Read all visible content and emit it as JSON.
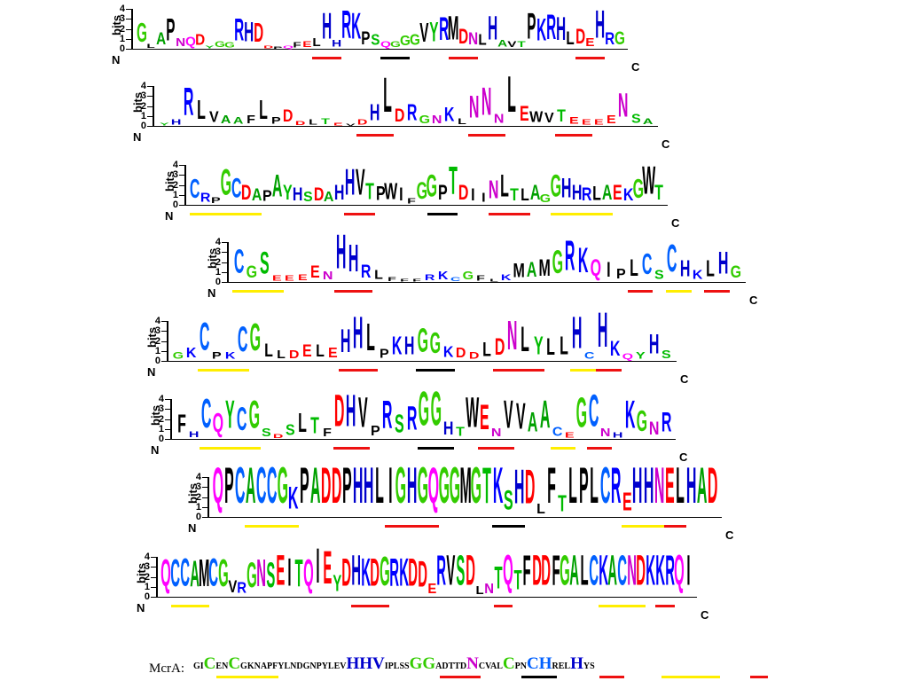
{
  "axis": {
    "title": "bits",
    "ticks": [
      "4",
      "3",
      "2",
      "1",
      "0"
    ],
    "n_label": "N",
    "c_label": "C"
  },
  "colors": {
    "A": "#00a000",
    "C": "#0060ff",
    "D": "#ff0000",
    "E": "#ff0000",
    "F": "#000000",
    "G": "#33cc00",
    "H": "#0000cc",
    "I": "#000000",
    "K": "#0000ff",
    "L": "#000000",
    "M": "#000000",
    "N": "#cc00cc",
    "P": "#000000",
    "Q": "#ff00ff",
    "R": "#0000ff",
    "S": "#00bb00",
    "T": "#00bb00",
    "V": "#000000",
    "W": "#000000",
    "Y": "#00bb00",
    "red_mark": "#ee1111",
    "black_mark": "#000000",
    "yellow_mark": "#ffee00"
  },
  "logos": [
    {
      "id": "logo1",
      "letters": "GLAPNQDYGGRHDDPQFELHHRKPSQGGGVYRMDNLHAVTPKRHLDEHRG",
      "heights": [
        1.9,
        0.4,
        1.2,
        2.2,
        0.8,
        0.9,
        1.1,
        0.3,
        0.6,
        0.5,
        2.2,
        2.0,
        1.9,
        0.3,
        0.2,
        0.3,
        0.5,
        0.6,
        0.8,
        2.6,
        0.7,
        2.8,
        2.6,
        1.3,
        1.1,
        0.6,
        0.6,
        1.0,
        1.1,
        1.9,
        2.0,
        2.3,
        2.4,
        1.5,
        1.2,
        1.1,
        2.4,
        0.7,
        0.6,
        0.6,
        2.6,
        2.2,
        2.5,
        2.3,
        1.3,
        1.5,
        0.8,
        2.8,
        1.2,
        1.3
      ],
      "marks": [
        [
          "red",
          18,
          21
        ],
        [
          "black",
          25,
          28
        ],
        [
          "red",
          32,
          35
        ],
        [
          "red",
          45,
          48
        ]
      ]
    },
    {
      "id": "logo2",
      "letters": "YHRLVAAFLPDDLTEVDHLDRGNKLNNNLEWVTEEEENSA",
      "heights": [
        0.3,
        0.5,
        2.8,
        1.9,
        1.1,
        0.8,
        0.7,
        0.8,
        1.9,
        0.7,
        1.2,
        0.4,
        0.5,
        0.6,
        0.3,
        0.2,
        0.5,
        1.6,
        3.5,
        1.3,
        1.6,
        0.8,
        0.8,
        1.4,
        0.6,
        2.2,
        2.8,
        0.9,
        3.6,
        1.5,
        1.1,
        1.0,
        1.2,
        0.7,
        0.5,
        0.5,
        0.8,
        2.4,
        0.9,
        0.6
      ],
      "marks": [
        [
          "red",
          16,
          19
        ],
        [
          "red",
          25,
          28
        ],
        [
          "red",
          32,
          35
        ]
      ]
    },
    {
      "id": "logo3",
      "letters": "CRPGCDAPAYHSDAHHVTPWIFGGPTDIINLTLAGGHHRLAEKGWT",
      "heights": [
        1.9,
        0.9,
        0.6,
        2.6,
        2.0,
        1.5,
        1.2,
        1.1,
        2.2,
        1.5,
        1.3,
        1.0,
        1.3,
        1.0,
        1.5,
        2.6,
        2.6,
        1.6,
        1.4,
        1.6,
        1.3,
        0.5,
        1.7,
        2.2,
        1.5,
        2.8,
        1.5,
        1.2,
        0.9,
        1.8,
        2.2,
        1.2,
        1.2,
        1.5,
        0.8,
        2.2,
        2.0,
        1.5,
        1.3,
        1.4,
        1.5,
        1.5,
        1.2,
        1.9,
        2.8,
        1.5
      ],
      "marks": [
        [
          "yellow",
          0,
          7
        ],
        [
          "red",
          15,
          18
        ],
        [
          "black",
          23,
          26
        ],
        [
          "red",
          29,
          33
        ],
        [
          "yellow",
          35,
          41
        ]
      ]
    },
    {
      "id": "logo4",
      "letters": "CGSEEEENHHRLFFFRKCGFLKMAMGRKQIPLCSCHKLHG",
      "heights": [
        2.4,
        1.2,
        2.2,
        0.5,
        0.5,
        0.6,
        1.2,
        0.8,
        3.4,
        2.7,
        1.3,
        0.9,
        0.4,
        0.3,
        0.3,
        0.6,
        0.8,
        0.4,
        0.8,
        0.5,
        0.3,
        0.6,
        1.4,
        1.5,
        1.7,
        2.3,
        3.0,
        2.5,
        1.7,
        1.5,
        1.0,
        1.7,
        2.1,
        0.9,
        2.7,
        1.6,
        0.9,
        1.6,
        2.2,
        1.2
      ],
      "marks": [
        [
          "yellow",
          0,
          4
        ],
        [
          "red",
          8,
          11
        ],
        [
          "red",
          31,
          33
        ],
        [
          "yellow",
          34,
          36
        ],
        [
          "red",
          37,
          39
        ]
      ]
    },
    {
      "id": "logo5",
      "letters": "GKCPKCGLLDELEHHLPKHGGKDDLDNLYLLHCHKQYHS",
      "heights": [
        0.7,
        1.0,
        2.8,
        0.7,
        0.7,
        2.5,
        2.7,
        1.3,
        0.8,
        0.8,
        1.2,
        1.2,
        1.0,
        2.3,
        3.2,
        2.7,
        0.9,
        1.8,
        1.8,
        2.4,
        2.1,
        1.1,
        1.0,
        0.7,
        1.4,
        1.7,
        2.9,
        2.5,
        1.8,
        1.7,
        1.8,
        3.2,
        0.7,
        3.5,
        1.5,
        0.6,
        0.7,
        2.0,
        0.8
      ],
      "marks": [
        [
          "yellow",
          2,
          6
        ],
        [
          "red",
          13,
          16
        ],
        [
          "black",
          19,
          22
        ],
        [
          "red",
          25,
          29
        ],
        [
          "yellow",
          31,
          34
        ],
        [
          "red",
          33,
          35
        ]
      ]
    },
    {
      "id": "logo6",
      "letters": "FHCQYCGSDSLTFDHVPRSRGGHTWENVVAACEGCNHKGNR",
      "heights": [
        1.8,
        0.6,
        2.9,
        1.9,
        2.8,
        2.3,
        2.8,
        0.8,
        0.4,
        1.1,
        1.9,
        1.6,
        0.8,
        3.2,
        3.2,
        3.0,
        1.0,
        2.8,
        1.8,
        2.4,
        3.4,
        3.4,
        1.3,
        0.9,
        3.0,
        2.5,
        0.8,
        2.8,
        2.6,
        2.0,
        2.8,
        0.9,
        0.5,
        3.0,
        3.2,
        0.8,
        0.5,
        2.8,
        2.1,
        1.3,
        2.0
      ],
      "marks": [
        [
          "yellow",
          2,
          7
        ],
        [
          "red",
          13,
          16
        ],
        [
          "black",
          20,
          23
        ],
        [
          "red",
          25,
          28
        ],
        [
          "yellow",
          31,
          33
        ],
        [
          "red",
          34,
          36
        ]
      ]
    },
    {
      "id": "logo7",
      "letters": "QPCACCGKPADDPHHLIGHGQGGMGTKSHDLFTLPLCREHHNELHAD",
      "heights": [
        3.6,
        3.6,
        3.6,
        3.6,
        3.6,
        3.6,
        3.6,
        2.2,
        3.6,
        3.6,
        3.6,
        3.6,
        3.6,
        3.6,
        3.6,
        3.6,
        3.6,
        3.6,
        3.6,
        3.6,
        3.6,
        3.6,
        3.6,
        3.6,
        3.6,
        3.6,
        3.6,
        2.0,
        3.4,
        3.4,
        1.0,
        3.6,
        1.6,
        3.6,
        3.6,
        3.6,
        3.6,
        3.6,
        1.8,
        3.6,
        3.6,
        3.6,
        3.6,
        3.6,
        3.6,
        3.6,
        3.6
      ],
      "marks": [
        [
          "yellow",
          3,
          8
        ],
        [
          "red",
          16,
          21
        ],
        [
          "black",
          26,
          29
        ],
        [
          "yellow",
          38,
          43
        ],
        [
          "red",
          42,
          44
        ]
      ]
    },
    {
      "id": "logo8",
      "letters": "QCCAMCGVRGNSEITQIEYDHKDGRKDDERVSDLNTQTFDDFGALCKACNDKKRQI",
      "heights": [
        2.7,
        2.7,
        2.8,
        2.6,
        2.7,
        2.8,
        2.7,
        1.2,
        1.1,
        2.5,
        2.7,
        2.5,
        3.0,
        2.8,
        2.7,
        2.7,
        3.5,
        3.3,
        1.6,
        2.8,
        3.0,
        2.8,
        2.8,
        2.9,
        2.8,
        2.8,
        2.8,
        2.6,
        1.0,
        3.0,
        3.0,
        3.0,
        3.0,
        0.8,
        1.0,
        2.2,
        3.0,
        2.0,
        3.0,
        3.0,
        3.0,
        3.0,
        3.0,
        3.0,
        3.0,
        3.0,
        3.0,
        3.0,
        3.0,
        3.0,
        3.0,
        3.0,
        3.0,
        3.0,
        3.0,
        3.0
      ],
      "marks": [
        [
          "yellow",
          1,
          5
        ],
        [
          "red",
          20,
          24
        ],
        [
          "red",
          35,
          37
        ],
        [
          "yellow",
          46,
          51
        ],
        [
          "red",
          52,
          54
        ]
      ]
    }
  ],
  "mcra": {
    "label": "McrA:",
    "segments": [
      {
        "text": "GI",
        "size": "small",
        "color": "#000000"
      },
      {
        "text": "C",
        "size": "large",
        "color": "#33cc00"
      },
      {
        "text": "EN",
        "size": "small",
        "color": "#000000"
      },
      {
        "text": "C",
        "size": "large",
        "color": "#33cc00"
      },
      {
        "text": "GKNAPFYLNDGNPYLEV",
        "size": "small",
        "color": "#000000"
      },
      {
        "text": "HHV",
        "size": "large",
        "color": "#0000cc"
      },
      {
        "text": "IPLSS",
        "size": "small",
        "color": "#000000"
      },
      {
        "text": "GG",
        "size": "large",
        "color": "#33cc00"
      },
      {
        "text": "ADTTD",
        "size": "small",
        "color": "#000000"
      },
      {
        "text": "N",
        "size": "large",
        "color": "#cc00cc"
      },
      {
        "text": "CVAL",
        "size": "small",
        "color": "#000000"
      },
      {
        "text": "C",
        "size": "large",
        "color": "#33cc00"
      },
      {
        "text": "PN",
        "size": "small",
        "color": "#000000"
      },
      {
        "text": "CH",
        "size": "large",
        "color": "#0060ff"
      },
      {
        "text": "REL",
        "size": "small",
        "color": "#000000"
      },
      {
        "text": "H",
        "size": "large",
        "color": "#0000cc"
      },
      {
        "text": "YS",
        "size": "small",
        "color": "#000000"
      }
    ]
  }
}
